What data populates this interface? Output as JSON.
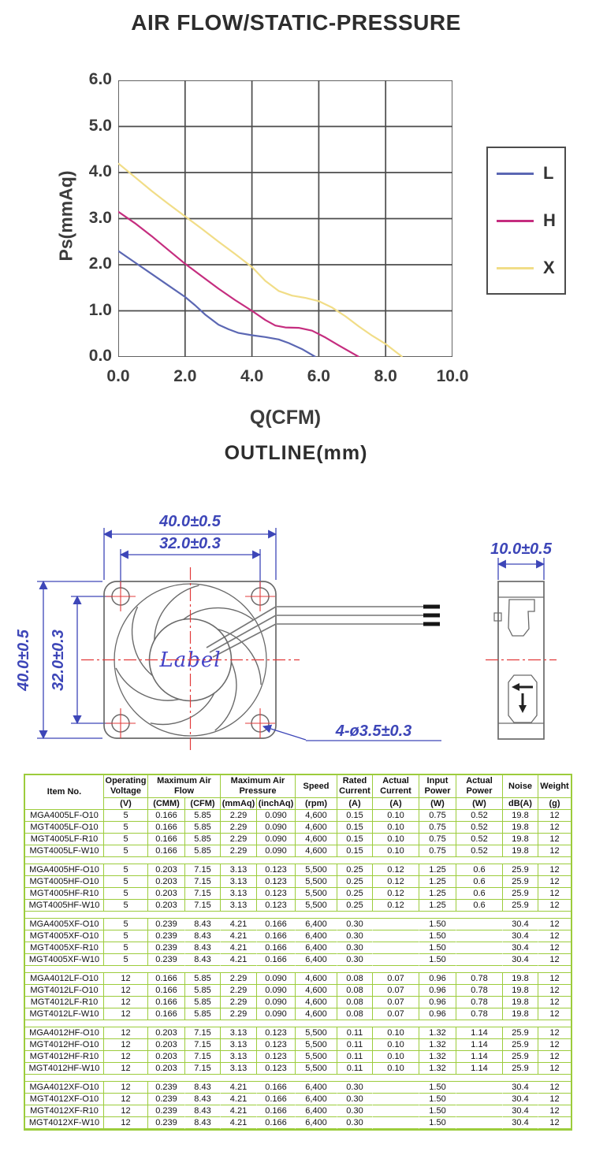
{
  "chart_data": {
    "type": "line",
    "title": "AIR FLOW/STATIC-PRESSURE",
    "xlabel": "Q(CFM)",
    "ylabel": "Ps(mmAq)",
    "xlim": [
      0,
      10
    ],
    "ylim": [
      0,
      6
    ],
    "xticks": [
      "0.0",
      "2.0",
      "4.0",
      "6.0",
      "8.0",
      "10.0"
    ],
    "yticks": [
      "0.0",
      "1.0",
      "2.0",
      "3.0",
      "4.0",
      "5.0",
      "6.0"
    ],
    "grid": true,
    "legend_position": "right",
    "series": [
      {
        "name": "L",
        "color": "#5b67b3",
        "points": [
          [
            0,
            2.3
          ],
          [
            0.5,
            2.05
          ],
          [
            1,
            1.8
          ],
          [
            1.5,
            1.55
          ],
          [
            2,
            1.3
          ],
          [
            2.3,
            1.12
          ],
          [
            2.6,
            0.92
          ],
          [
            3,
            0.7
          ],
          [
            3.3,
            0.6
          ],
          [
            3.6,
            0.52
          ],
          [
            4,
            0.47
          ],
          [
            4.4,
            0.43
          ],
          [
            4.8,
            0.38
          ],
          [
            5.1,
            0.3
          ],
          [
            5.5,
            0.17
          ],
          [
            5.9,
            0
          ]
        ]
      },
      {
        "name": "H",
        "color": "#c52d7f",
        "points": [
          [
            0,
            3.15
          ],
          [
            0.5,
            2.9
          ],
          [
            1,
            2.62
          ],
          [
            1.5,
            2.32
          ],
          [
            2,
            2.02
          ],
          [
            2.5,
            1.75
          ],
          [
            3,
            1.48
          ],
          [
            3.5,
            1.23
          ],
          [
            4,
            1.0
          ],
          [
            4.4,
            0.8
          ],
          [
            4.7,
            0.68
          ],
          [
            5,
            0.64
          ],
          [
            5.4,
            0.63
          ],
          [
            5.8,
            0.57
          ],
          [
            6.2,
            0.42
          ],
          [
            6.6,
            0.25
          ],
          [
            7.2,
            0
          ]
        ]
      },
      {
        "name": "X",
        "color": "#f1dd87",
        "points": [
          [
            0,
            4.2
          ],
          [
            0.5,
            3.9
          ],
          [
            1,
            3.6
          ],
          [
            1.5,
            3.32
          ],
          [
            2,
            3.05
          ],
          [
            2.5,
            2.78
          ],
          [
            3,
            2.5
          ],
          [
            3.5,
            2.23
          ],
          [
            4,
            1.95
          ],
          [
            4.4,
            1.65
          ],
          [
            4.8,
            1.43
          ],
          [
            5.2,
            1.33
          ],
          [
            5.6,
            1.28
          ],
          [
            6,
            1.21
          ],
          [
            6.4,
            1.07
          ],
          [
            6.8,
            0.88
          ],
          [
            7.2,
            0.66
          ],
          [
            7.6,
            0.46
          ],
          [
            8,
            0.28
          ],
          [
            8.5,
            0
          ]
        ]
      }
    ]
  },
  "outline": {
    "title": "OUTLINE(mm)",
    "dim_width": "40.0±0.5",
    "dim_hole_pitch_h": "32.0±0.3",
    "dim_height": "40.0±0.5",
    "dim_hole_pitch_v": "32.0±0.3",
    "dim_mount_holes": "4-ø3.5±0.3",
    "dim_depth": "10.0±0.5",
    "hub_label": "Label"
  },
  "table": {
    "border_color": "#9ccc3c",
    "header_row1": [
      "Item No.",
      "Operating Voltage",
      "Maximum Air Flow",
      "Maximum Air Pressure",
      "Speed",
      "Rated Current",
      "Actual Current",
      "Input Power",
      "Actual Power",
      "Noise",
      "Weight"
    ],
    "header_row2": [
      "(V)",
      "(CMM)",
      "(CFM)",
      "(mmAq)",
      "(inchAq)",
      "(rpm)",
      "(A)",
      "(A)",
      "(W)",
      "(W)",
      "dB(A)",
      "(g)"
    ],
    "groups": [
      {
        "merged": false,
        "rows": [
          [
            "MGA4005LF-O10",
            "5",
            "0.166",
            "5.85",
            "2.29",
            "0.090",
            "4,600",
            "0.15",
            "0.10",
            "0.75",
            "0.52",
            "19.8",
            "12"
          ],
          [
            "MGT4005LF-O10",
            "5",
            "0.166",
            "5.85",
            "2.29",
            "0.090",
            "4,600",
            "0.15",
            "0.10",
            "0.75",
            "0.52",
            "19.8",
            "12"
          ],
          [
            "MGT4005LF-R10",
            "5",
            "0.166",
            "5.85",
            "2.29",
            "0.090",
            "4,600",
            "0.15",
            "0.10",
            "0.75",
            "0.52",
            "19.8",
            "12"
          ],
          [
            "MGT4005LF-W10",
            "5",
            "0.166",
            "5.85",
            "2.29",
            "0.090",
            "4,600",
            "0.15",
            "0.10",
            "0.75",
            "0.52",
            "19.8",
            "12"
          ]
        ]
      },
      {
        "merged": false,
        "rows": [
          [
            "MGA4005HF-O10",
            "5",
            "0.203",
            "7.15",
            "3.13",
            "0.123",
            "5,500",
            "0.25",
            "0.12",
            "1.25",
            "0.6",
            "25.9",
            "12"
          ],
          [
            "MGT4005HF-O10",
            "5",
            "0.203",
            "7.15",
            "3.13",
            "0.123",
            "5,500",
            "0.25",
            "0.12",
            "1.25",
            "0.6",
            "25.9",
            "12"
          ],
          [
            "MGT4005HF-R10",
            "5",
            "0.203",
            "7.15",
            "3.13",
            "0.123",
            "5,500",
            "0.25",
            "0.12",
            "1.25",
            "0.6",
            "25.9",
            "12"
          ],
          [
            "MGT4005HF-W10",
            "5",
            "0.203",
            "7.15",
            "3.13",
            "0.123",
            "5,500",
            "0.25",
            "0.12",
            "1.25",
            "0.6",
            "25.9",
            "12"
          ]
        ]
      },
      {
        "merged": true,
        "rows": [
          [
            "MGA4005XF-O10",
            "5",
            "0.239",
            "8.43",
            "4.21",
            "0.166",
            "6,400",
            "0.30",
            "",
            "1.50",
            "",
            "30.4",
            "12"
          ],
          [
            "MGT4005XF-O10",
            "5",
            "0.239",
            "8.43",
            "4.21",
            "0.166",
            "6,400",
            "0.30",
            "",
            "1.50",
            "",
            "30.4",
            "12"
          ],
          [
            "MGT4005XF-R10",
            "5",
            "0.239",
            "8.43",
            "4.21",
            "0.166",
            "6,400",
            "0.30",
            "",
            "1.50",
            "",
            "30.4",
            "12"
          ],
          [
            "MGT4005XF-W10",
            "5",
            "0.239",
            "8.43",
            "4.21",
            "0.166",
            "6,400",
            "0.30",
            "",
            "1.50",
            "",
            "30.4",
            "12"
          ]
        ]
      },
      {
        "merged": false,
        "rows": [
          [
            "MGA4012LF-O10",
            "12",
            "0.166",
            "5.85",
            "2.29",
            "0.090",
            "4,600",
            "0.08",
            "0.07",
            "0.96",
            "0.78",
            "19.8",
            "12"
          ],
          [
            "MGT4012LF-O10",
            "12",
            "0.166",
            "5.85",
            "2.29",
            "0.090",
            "4,600",
            "0.08",
            "0.07",
            "0.96",
            "0.78",
            "19.8",
            "12"
          ],
          [
            "MGT4012LF-R10",
            "12",
            "0.166",
            "5.85",
            "2.29",
            "0.090",
            "4,600",
            "0.08",
            "0.07",
            "0.96",
            "0.78",
            "19.8",
            "12"
          ],
          [
            "MGT4012LF-W10",
            "12",
            "0.166",
            "5.85",
            "2.29",
            "0.090",
            "4,600",
            "0.08",
            "0.07",
            "0.96",
            "0.78",
            "19.8",
            "12"
          ]
        ]
      },
      {
        "merged": false,
        "rows": [
          [
            "MGA4012HF-O10",
            "12",
            "0.203",
            "7.15",
            "3.13",
            "0.123",
            "5,500",
            "0.11",
            "0.10",
            "1.32",
            "1.14",
            "25.9",
            "12"
          ],
          [
            "MGT4012HF-O10",
            "12",
            "0.203",
            "7.15",
            "3.13",
            "0.123",
            "5,500",
            "0.11",
            "0.10",
            "1.32",
            "1.14",
            "25.9",
            "12"
          ],
          [
            "MGT4012HF-R10",
            "12",
            "0.203",
            "7.15",
            "3.13",
            "0.123",
            "5,500",
            "0.11",
            "0.10",
            "1.32",
            "1.14",
            "25.9",
            "12"
          ],
          [
            "MGT4012HF-W10",
            "12",
            "0.203",
            "7.15",
            "3.13",
            "0.123",
            "5,500",
            "0.11",
            "0.10",
            "1.32",
            "1.14",
            "25.9",
            "12"
          ]
        ]
      },
      {
        "merged": true,
        "rows": [
          [
            "MGA4012XF-O10",
            "12",
            "0.239",
            "8.43",
            "4.21",
            "0.166",
            "6,400",
            "0.30",
            "",
            "1.50",
            "",
            "30.4",
            "12"
          ],
          [
            "MGT4012XF-O10",
            "12",
            "0.239",
            "8.43",
            "4.21",
            "0.166",
            "6,400",
            "0.30",
            "",
            "1.50",
            "",
            "30.4",
            "12"
          ],
          [
            "MGT4012XF-R10",
            "12",
            "0.239",
            "8.43",
            "4.21",
            "0.166",
            "6,400",
            "0.30",
            "",
            "1.50",
            "",
            "30.4",
            "12"
          ],
          [
            "MGT4012XF-W10",
            "12",
            "0.239",
            "8.43",
            "4.21",
            "0.166",
            "6,400",
            "0.30",
            "",
            "1.50",
            "",
            "30.4",
            "12"
          ]
        ]
      }
    ]
  }
}
